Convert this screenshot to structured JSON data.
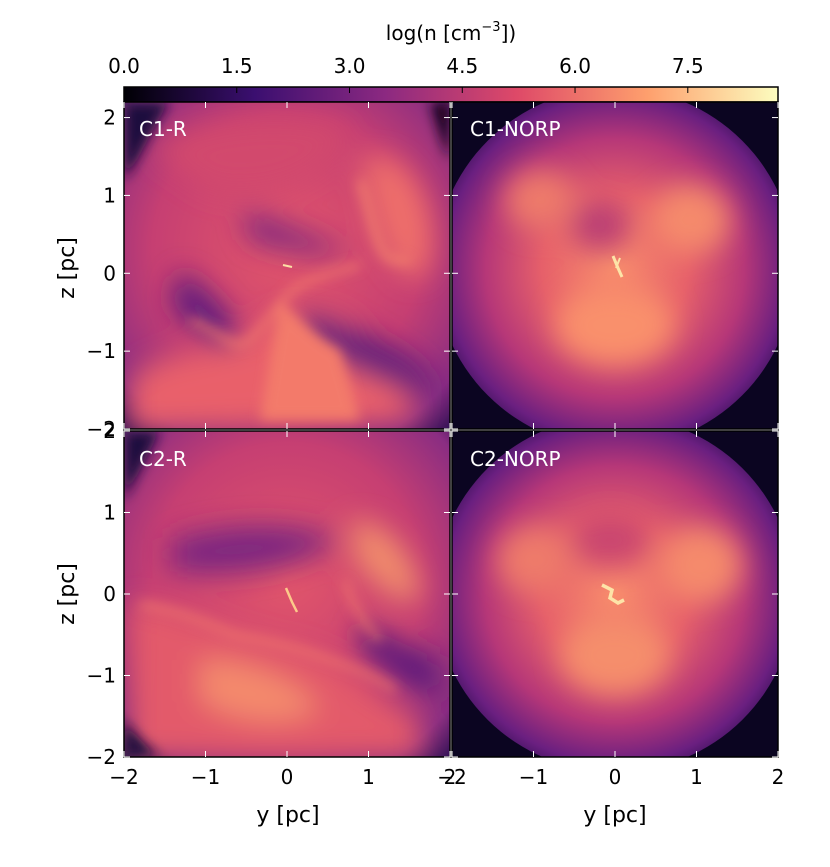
{
  "chart_data": {
    "type": "heatmap",
    "colorbar": {
      "label": "log(n [cm",
      "label_sup": "−3",
      "label_end": "])",
      "ticks": [
        "0.0",
        "1.5",
        "3.0",
        "4.5",
        "6.0",
        "7.5"
      ],
      "tick_values": [
        0.0,
        1.5,
        3.0,
        4.5,
        6.0,
        7.5
      ],
      "range": [
        0.0,
        8.7
      ],
      "colormap": "magma"
    },
    "xlabel": "y [pc]",
    "ylabel": "z [pc]",
    "xlim": [
      -2,
      2
    ],
    "ylim": [
      -2,
      2.2
    ],
    "x_ticks": [
      "−2",
      "−1",
      "0",
      "1",
      "2"
    ],
    "y_ticks": [
      "−2",
      "−1",
      "0",
      "1",
      "2"
    ],
    "panels": [
      {
        "label": "C1-R",
        "row": 0,
        "col": 0,
        "morphology": "filamentary, bright dense ridges, low-density cavities"
      },
      {
        "label": "C1-NORP",
        "row": 0,
        "col": 1,
        "morphology": "smooth centrally concentrated cloud with dense central filament"
      },
      {
        "label": "C2-R",
        "row": 1,
        "col": 0,
        "morphology": "filamentary, bright dense ridges, low-density cavities"
      },
      {
        "label": "C2-NORP",
        "row": 1,
        "col": 1,
        "morphology": "smooth centrally concentrated cloud with dense central clump"
      }
    ],
    "colors": {
      "c0": "#000004",
      "c1": "#3b0f70",
      "c2": "#8c2981",
      "c3": "#de4968",
      "c4": "#fe9f6d",
      "c5": "#fcfdbf"
    }
  }
}
